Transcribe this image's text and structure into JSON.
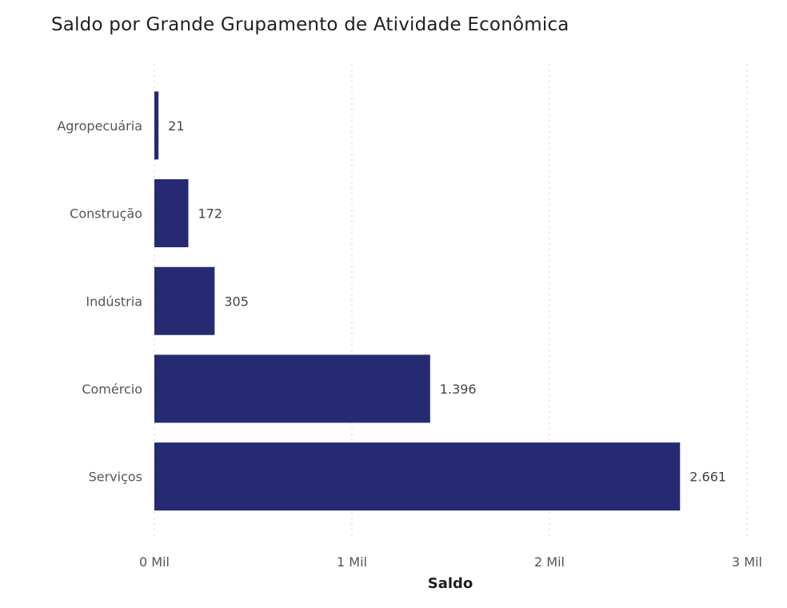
{
  "chart_data": {
    "type": "bar",
    "orientation": "horizontal",
    "title": "Saldo por Grande Grupamento de Atividade Econômica",
    "xlabel": "Saldo",
    "ylabel": "",
    "categories": [
      "Agropecuária",
      "Construção",
      "Indústria",
      "Comércio",
      "Serviços"
    ],
    "values": [
      21,
      172,
      305,
      1396,
      2661
    ],
    "value_labels": [
      "21",
      "172",
      "305",
      "1.396",
      "2.661"
    ],
    "xlim": [
      0,
      3000
    ],
    "x_ticks": [
      0,
      1000,
      2000,
      3000
    ],
    "x_tick_labels": [
      "0 Mil",
      "1 Mil",
      "2 Mil",
      "3 Mil"
    ],
    "grid": "vertical-dotted",
    "legend": "none",
    "bar_color": "#262a72"
  }
}
